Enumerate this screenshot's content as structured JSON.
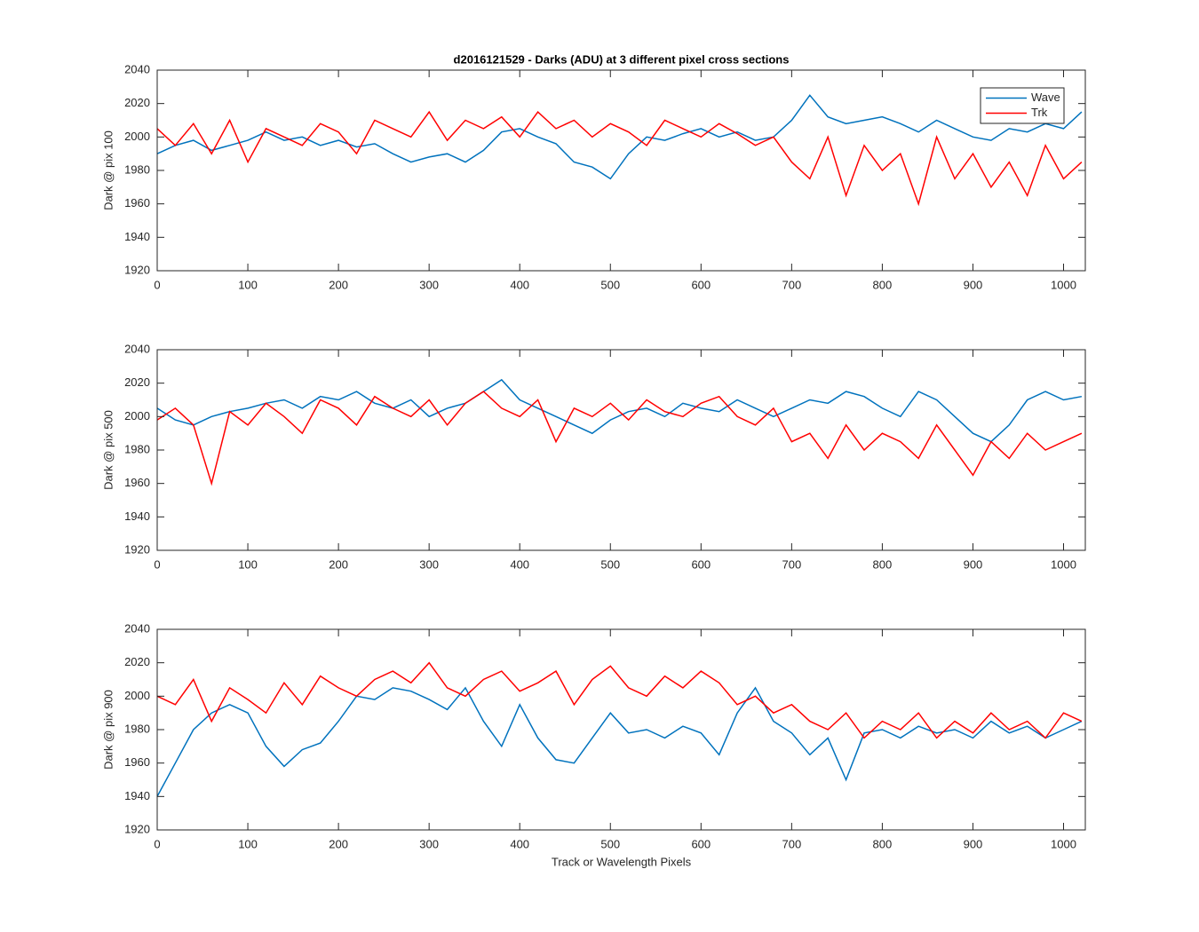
{
  "chart_data": [
    {
      "type": "line",
      "title": "d2016121529 - Darks (ADU) at 3 different pixel cross sections",
      "y_label": "Dark @ pix 100",
      "xlim": [
        0,
        1024
      ],
      "xticks": [
        0,
        100,
        200,
        300,
        400,
        500,
        600,
        700,
        800,
        900,
        1000
      ],
      "ylim": [
        1920,
        2040
      ],
      "yticks": [
        1920,
        1940,
        1960,
        1980,
        2000,
        2020,
        2040
      ],
      "legend": "northeast",
      "x": [
        0,
        20,
        40,
        60,
        80,
        100,
        120,
        140,
        160,
        180,
        200,
        220,
        240,
        260,
        280,
        300,
        320,
        340,
        360,
        380,
        400,
        420,
        440,
        460,
        480,
        500,
        520,
        540,
        560,
        580,
        600,
        620,
        640,
        660,
        680,
        700,
        720,
        740,
        760,
        780,
        800,
        820,
        840,
        860,
        880,
        900,
        920,
        940,
        960,
        980,
        1000,
        1020
      ],
      "series": [
        {
          "name": "Wave",
          "color": "#0072bd",
          "values": [
            1990,
            1995,
            1998,
            1992,
            1995,
            1998,
            2003,
            1998,
            2000,
            1995,
            1998,
            1994,
            1996,
            1990,
            1985,
            1988,
            1990,
            1985,
            1992,
            2003,
            2005,
            2000,
            1996,
            1985,
            1982,
            1975,
            1990,
            2000,
            1998,
            2002,
            2005,
            2000,
            2003,
            1998,
            2000,
            2010,
            2025,
            2012,
            2008,
            2010,
            2012,
            2008,
            2003,
            2010,
            2005,
            2000,
            1998,
            2005,
            2003,
            2008,
            2005,
            2015
          ]
        },
        {
          "name": "Trk",
          "color": "#ff0000",
          "values": [
            2005,
            1995,
            2008,
            1990,
            2010,
            1985,
            2005,
            2000,
            1995,
            2008,
            2003,
            1990,
            2010,
            2005,
            2000,
            2015,
            1998,
            2010,
            2005,
            2012,
            2000,
            2015,
            2005,
            2010,
            2000,
            2008,
            2003,
            1995,
            2010,
            2005,
            2000,
            2008,
            2002,
            1995,
            2000,
            1985,
            1975,
            2000,
            1965,
            1995,
            1980,
            1990,
            1960,
            2000,
            1975,
            1990,
            1970,
            1985,
            1965,
            1995,
            1975,
            1985
          ]
        }
      ]
    },
    {
      "type": "line",
      "y_label": "Dark @ pix 500",
      "xlim": [
        0,
        1024
      ],
      "xticks": [
        0,
        100,
        200,
        300,
        400,
        500,
        600,
        700,
        800,
        900,
        1000
      ],
      "ylim": [
        1920,
        2040
      ],
      "yticks": [
        1920,
        1940,
        1960,
        1980,
        2000,
        2020,
        2040
      ],
      "x": [
        0,
        20,
        40,
        60,
        80,
        100,
        120,
        140,
        160,
        180,
        200,
        220,
        240,
        260,
        280,
        300,
        320,
        340,
        360,
        380,
        400,
        420,
        440,
        460,
        480,
        500,
        520,
        540,
        560,
        580,
        600,
        620,
        640,
        660,
        680,
        700,
        720,
        740,
        760,
        780,
        800,
        820,
        840,
        860,
        880,
        900,
        920,
        940,
        960,
        980,
        1000,
        1020
      ],
      "series": [
        {
          "name": "Wave",
          "color": "#0072bd",
          "values": [
            2005,
            1998,
            1995,
            2000,
            2003,
            2005,
            2008,
            2010,
            2005,
            2012,
            2010,
            2015,
            2008,
            2005,
            2010,
            2000,
            2005,
            2008,
            2015,
            2022,
            2010,
            2005,
            2000,
            1995,
            1990,
            1998,
            2003,
            2005,
            2000,
            2008,
            2005,
            2003,
            2010,
            2005,
            2000,
            2005,
            2010,
            2008,
            2015,
            2012,
            2005,
            2000,
            2015,
            2010,
            2000,
            1990,
            1985,
            1995,
            2010,
            2015,
            2010,
            2012
          ]
        },
        {
          "name": "Trk",
          "color": "#ff0000",
          "values": [
            1998,
            2005,
            1995,
            1960,
            2003,
            1995,
            2008,
            2000,
            1990,
            2010,
            2005,
            1995,
            2012,
            2005,
            2000,
            2010,
            1995,
            2008,
            2015,
            2005,
            2000,
            2010,
            1985,
            2005,
            2000,
            2008,
            1998,
            2010,
            2003,
            2000,
            2008,
            2012,
            2000,
            1995,
            2005,
            1985,
            1990,
            1975,
            1995,
            1980,
            1990,
            1985,
            1975,
            1995,
            1980,
            1965,
            1985,
            1975,
            1990,
            1980,
            1985,
            1990
          ]
        }
      ]
    },
    {
      "type": "line",
      "y_label": "Dark @ pix 900",
      "x_label": "Track or Wavelength Pixels",
      "xlim": [
        0,
        1024
      ],
      "xticks": [
        0,
        100,
        200,
        300,
        400,
        500,
        600,
        700,
        800,
        900,
        1000
      ],
      "ylim": [
        1920,
        2040
      ],
      "yticks": [
        1920,
        1940,
        1960,
        1980,
        2000,
        2020,
        2040
      ],
      "x": [
        0,
        20,
        40,
        60,
        80,
        100,
        120,
        140,
        160,
        180,
        200,
        220,
        240,
        260,
        280,
        300,
        320,
        340,
        360,
        380,
        400,
        420,
        440,
        460,
        480,
        500,
        520,
        540,
        560,
        580,
        600,
        620,
        640,
        660,
        680,
        700,
        720,
        740,
        760,
        780,
        800,
        820,
        840,
        860,
        880,
        900,
        920,
        940,
        960,
        980,
        1000,
        1020
      ],
      "series": [
        {
          "name": "Wave",
          "color": "#0072bd",
          "values": [
            1940,
            1960,
            1980,
            1990,
            1995,
            1990,
            1970,
            1958,
            1968,
            1972,
            1985,
            2000,
            1998,
            2005,
            2003,
            1998,
            1992,
            2005,
            1985,
            1970,
            1995,
            1975,
            1962,
            1960,
            1975,
            1990,
            1978,
            1980,
            1975,
            1982,
            1978,
            1965,
            1990,
            2005,
            1985,
            1978,
            1965,
            1975,
            1950,
            1978,
            1980,
            1975,
            1982,
            1978,
            1980,
            1975,
            1985,
            1978,
            1982,
            1975,
            1980,
            1985
          ]
        },
        {
          "name": "Trk",
          "color": "#ff0000",
          "values": [
            2000,
            1995,
            2010,
            1985,
            2005,
            1998,
            1990,
            2008,
            1995,
            2012,
            2005,
            2000,
            2010,
            2015,
            2008,
            2020,
            2005,
            2000,
            2010,
            2015,
            2003,
            2008,
            2015,
            1995,
            2010,
            2018,
            2005,
            2000,
            2012,
            2005,
            2015,
            2008,
            1995,
            2000,
            1990,
            1995,
            1985,
            1980,
            1990,
            1975,
            1985,
            1980,
            1990,
            1975,
            1985,
            1978,
            1990,
            1980,
            1985,
            1975,
            1990,
            1985
          ]
        }
      ]
    }
  ]
}
